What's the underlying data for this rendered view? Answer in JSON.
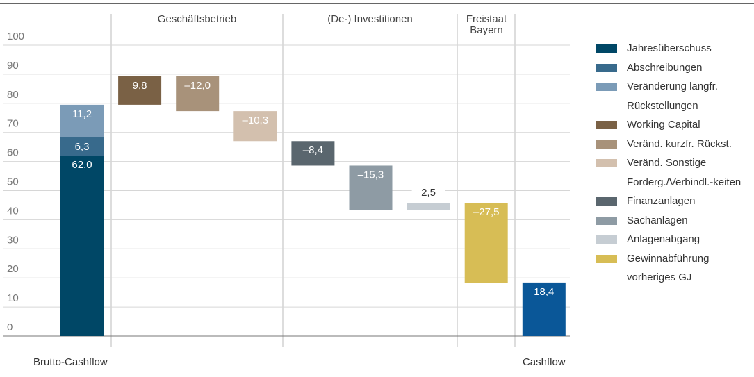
{
  "chart_data": {
    "type": "waterfall",
    "categories": [
      "Brutto-Cashflow",
      null,
      null,
      null,
      null,
      null,
      null,
      null,
      "Cashflow"
    ],
    "groups": [
      "Geschäftsbetrieb",
      "(De-) Investitionen",
      "Freistaat Bayern"
    ],
    "ylim": [
      0,
      100
    ],
    "yticks": [
      0,
      10,
      20,
      30,
      40,
      50,
      60,
      70,
      80,
      90,
      100
    ],
    "grid": true,
    "legend": "right",
    "series": [
      {
        "name": "Jahresüberschuss",
        "color": "#004766",
        "values": [
          62.0,
          null,
          null,
          null,
          null,
          null,
          null,
          null,
          null
        ],
        "value_labels": [
          "62,0",
          null,
          null,
          null,
          null,
          null,
          null,
          null,
          null
        ]
      },
      {
        "name": "Abschreibungen",
        "color": "#386a8c",
        "values": [
          6.3,
          null,
          null,
          null,
          null,
          null,
          null,
          null,
          null
        ],
        "value_labels": [
          "6,3",
          null,
          null,
          null,
          null,
          null,
          null,
          null,
          null
        ]
      },
      {
        "name": "Veränderung langfr. Rückstellungen",
        "color": "#7b9bb7",
        "values": [
          11.2,
          null,
          null,
          null,
          null,
          null,
          null,
          null,
          null
        ],
        "value_labels": [
          "11,2",
          null,
          null,
          null,
          null,
          null,
          null,
          null,
          null
        ]
      },
      {
        "name": "Working Capital",
        "color": "#7a6145",
        "values": [
          null,
          9.8,
          null,
          null,
          null,
          null,
          null,
          null,
          null
        ],
        "value_labels": [
          null,
          "9,8",
          null,
          null,
          null,
          null,
          null,
          null,
          null
        ]
      },
      {
        "name": "Veränd. kurzfr. Rückst.",
        "color": "#a8927a",
        "values": [
          null,
          null,
          -12.0,
          null,
          null,
          null,
          null,
          null,
          null
        ],
        "value_labels": [
          null,
          null,
          "–12,0",
          null,
          null,
          null,
          null,
          null,
          null
        ]
      },
      {
        "name": "Veränd. Sonstige Forderg./Verbindl.-keiten",
        "color": "#d3c0ae",
        "values": [
          null,
          null,
          null,
          -10.3,
          null,
          null,
          null,
          null,
          null
        ],
        "value_labels": [
          null,
          null,
          null,
          "–10,3",
          null,
          null,
          null,
          null,
          null
        ]
      },
      {
        "name": "Finanzanlagen",
        "color": "#5a666e",
        "values": [
          null,
          null,
          null,
          null,
          -8.4,
          null,
          null,
          null,
          null
        ],
        "value_labels": [
          null,
          null,
          null,
          null,
          "–8,4",
          null,
          null,
          null,
          null
        ]
      },
      {
        "name": "Sachanlagen",
        "color": "#8e9ba4",
        "values": [
          null,
          null,
          null,
          null,
          null,
          -15.3,
          null,
          null,
          null
        ],
        "value_labels": [
          null,
          null,
          null,
          null,
          null,
          "–15,3",
          null,
          null,
          null
        ]
      },
      {
        "name": "Anlagenabgang",
        "color": "#c6cdd3",
        "values": [
          null,
          null,
          null,
          null,
          null,
          null,
          2.5,
          null,
          null
        ],
        "value_labels": [
          null,
          null,
          null,
          null,
          null,
          null,
          "2,5",
          null,
          null
        ]
      },
      {
        "name": "Gewinnabführung vorheriges GJ",
        "color": "#d7bd55",
        "values": [
          null,
          null,
          null,
          null,
          null,
          null,
          null,
          -27.5,
          null
        ],
        "value_labels": [
          null,
          null,
          null,
          null,
          null,
          null,
          null,
          "–27,5",
          null
        ]
      }
    ],
    "total_color": "#0a5798",
    "total_values": [
      null,
      null,
      null,
      null,
      null,
      null,
      null,
      null,
      18.4
    ],
    "total_value_labels": [
      null,
      null,
      null,
      null,
      null,
      null,
      null,
      null,
      "18,4"
    ]
  }
}
